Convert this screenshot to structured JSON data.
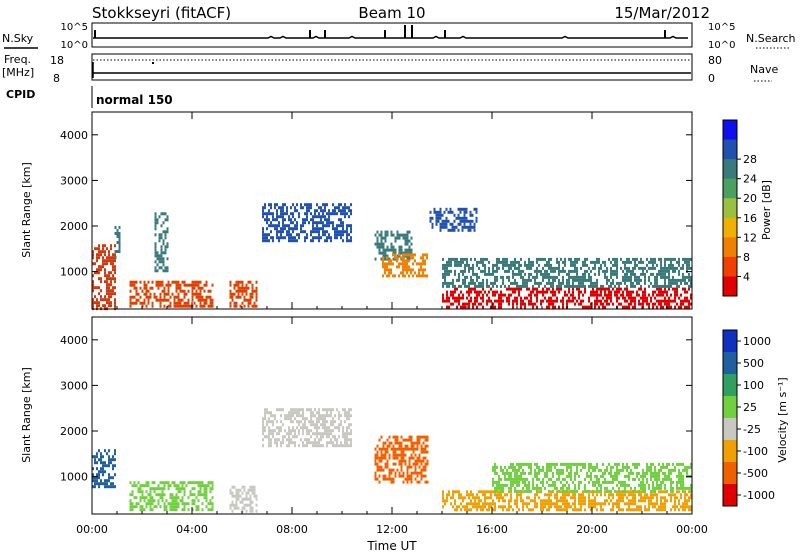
{
  "header": {
    "station": "Stokkseyri (fitACF)",
    "beam": "Beam 10",
    "date": "15/Mar/2012"
  },
  "aux_panels": {
    "nsky_label": "N.Sky",
    "nsky_ticks": [
      "10^5",
      "10^0"
    ],
    "nsearch_label": "N.Search",
    "nsearch_ticks": [
      "10^5",
      "10^0"
    ],
    "freq_label": "Freq.",
    "freq_unit": "[MHz]",
    "freq_ticks": [
      "18",
      "8"
    ],
    "nave_label": "Nave",
    "nave_ticks": [
      "80",
      "0"
    ],
    "cpid_label": "CPID",
    "cpid_value": "normal 150"
  },
  "chart_data": [
    {
      "type": "heatmap",
      "name": "power-panel",
      "ylabel": "Slant Range [km]",
      "xlabel": "Time UT",
      "x_ticks": [
        "00:00",
        "04:00",
        "08:00",
        "12:00",
        "16:00",
        "20:00",
        "00:00"
      ],
      "y_ticks": [
        1000,
        2000,
        3000,
        4000
      ],
      "x_range_hours": [
        0,
        24
      ],
      "y_range_km": [
        180,
        4500
      ],
      "colorbar": {
        "label": "Power [dB]",
        "ticks": [
          "4",
          "8",
          "12",
          "16",
          "20",
          "24",
          "28"
        ],
        "colors": [
          "#1010ee",
          "#2050b0",
          "#3a7a7a",
          "#4aa060",
          "#9ac040",
          "#f0b000",
          "#f08000",
          "#f04000",
          "#e00000"
        ]
      },
      "regions": [
        {
          "t0": 0.0,
          "t1": 0.9,
          "r0": 200,
          "r1": 1600,
          "color": "#d03a10"
        },
        {
          "t0": 0.9,
          "t1": 1.1,
          "r0": 1300,
          "r1": 2000,
          "color": "#3a7a7a"
        },
        {
          "t0": 1.5,
          "t1": 4.8,
          "r0": 250,
          "r1": 800,
          "color": "#e04000"
        },
        {
          "t0": 2.5,
          "t1": 3.0,
          "r0": 1000,
          "r1": 2300,
          "color": "#3a7a7a"
        },
        {
          "t0": 5.5,
          "t1": 6.6,
          "r0": 250,
          "r1": 800,
          "color": "#e04000"
        },
        {
          "t0": 6.8,
          "t1": 10.4,
          "r0": 1700,
          "r1": 2500,
          "color": "#2050b0"
        },
        {
          "t0": 11.3,
          "t1": 12.8,
          "r0": 1300,
          "r1": 1900,
          "color": "#3a7a7a"
        },
        {
          "t0": 11.6,
          "t1": 13.4,
          "r0": 900,
          "r1": 1400,
          "color": "#f08000"
        },
        {
          "t0": 13.5,
          "t1": 15.4,
          "r0": 1900,
          "r1": 2400,
          "color": "#2050b0"
        },
        {
          "t0": 14.0,
          "t1": 24.0,
          "r0": 250,
          "r1": 650,
          "color": "#e00000"
        },
        {
          "t0": 14.0,
          "t1": 24.0,
          "r0": 650,
          "r1": 1300,
          "color": "#3a7a7a"
        }
      ]
    },
    {
      "type": "heatmap",
      "name": "velocity-panel",
      "ylabel": "Slant Range [km]",
      "xlabel": "Time UT",
      "x_ticks": [
        "00:00",
        "04:00",
        "08:00",
        "12:00",
        "16:00",
        "20:00",
        "00:00"
      ],
      "y_ticks": [
        1000,
        2000,
        3000,
        4000
      ],
      "x_range_hours": [
        0,
        24
      ],
      "y_range_km": [
        180,
        4500
      ],
      "colorbar": {
        "label": "Velocity [m s⁻¹]",
        "ticks": [
          "1000",
          "500",
          "100",
          "25",
          "-25",
          "-100",
          "-500",
          "-1000"
        ],
        "colors": [
          "#1030c0",
          "#2060a0",
          "#30a060",
          "#70d040",
          "#c8c8c0",
          "#f0a000",
          "#f06000",
          "#e00000"
        ]
      },
      "regions": [
        {
          "t0": 0.0,
          "t1": 0.9,
          "r0": 800,
          "r1": 1600,
          "color": "#2060a0"
        },
        {
          "t0": 1.5,
          "t1": 4.8,
          "r0": 250,
          "r1": 900,
          "color": "#70d040"
        },
        {
          "t0": 5.5,
          "t1": 6.6,
          "r0": 250,
          "r1": 800,
          "color": "#c8c8c0"
        },
        {
          "t0": 6.8,
          "t1": 10.4,
          "r0": 1700,
          "r1": 2500,
          "color": "#c8c8c0"
        },
        {
          "t0": 11.3,
          "t1": 13.4,
          "r0": 900,
          "r1": 1900,
          "color": "#f06000"
        },
        {
          "t0": 14.0,
          "t1": 24.0,
          "r0": 250,
          "r1": 700,
          "color": "#f0a000"
        },
        {
          "t0": 16.0,
          "t1": 24.0,
          "r0": 700,
          "r1": 1300,
          "color": "#70d040"
        }
      ]
    }
  ]
}
